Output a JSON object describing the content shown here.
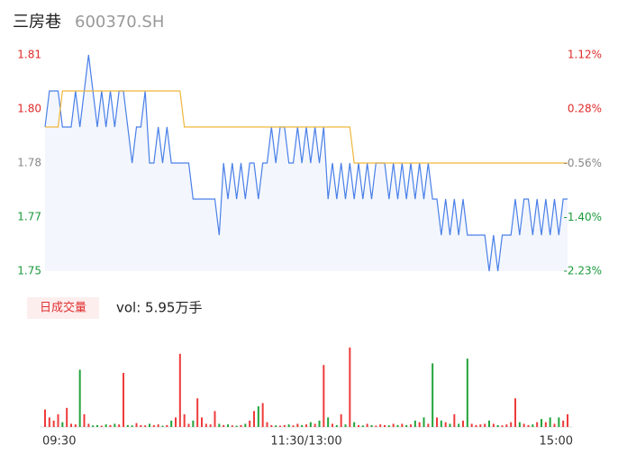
{
  "chart_data": [
    {
      "type": "line",
      "title": "三房巷",
      "subtitle": "600370.SH",
      "ylim": [
        1.75,
        1.81
      ],
      "yticks": [
        1.81,
        {
          "value": 1.795,
          "label": "1.80"
        },
        1.78,
        {
          "value": 1.765,
          "label": "1.77"
        },
        1.75
      ],
      "ytick_colors": [
        "#e02a2a",
        "#e02a2a",
        "#888888",
        "#1a9a3a",
        "#1a9a3a"
      ],
      "y2lim": [
        -2.23,
        1.12
      ],
      "y2ticks": [
        {
          "value": 1.12,
          "label": "1.12%"
        },
        {
          "value": 0.28,
          "label": "0.28%"
        },
        {
          "value": -0.56,
          "label": "-0.56%"
        },
        {
          "value": -1.4,
          "label": "-1.40%"
        },
        {
          "value": -2.23,
          "label": "-2.23%"
        }
      ],
      "xlim": [
        0,
        120
      ],
      "xticks": [
        {
          "value": 0,
          "label": "09:30"
        },
        {
          "value": 60,
          "label": "11:30/13:00"
        },
        {
          "value": 120,
          "label": "15:00"
        }
      ],
      "area_color": "#f3f6fd",
      "series": [
        {
          "color": "#4a80e8",
          "values": [
            1.79,
            1.8,
            1.8,
            1.8,
            1.79,
            1.79,
            1.79,
            1.8,
            1.79,
            1.8,
            1.81,
            1.8,
            1.79,
            1.8,
            1.79,
            1.8,
            1.79,
            1.8,
            1.8,
            1.79,
            1.78,
            1.79,
            1.79,
            1.8,
            1.78,
            1.78,
            1.79,
            1.78,
            1.79,
            1.78,
            1.78,
            1.78,
            1.78,
            1.78,
            1.77,
            1.77,
            1.77,
            1.77,
            1.77,
            1.77,
            1.76,
            1.78,
            1.77,
            1.78,
            1.77,
            1.78,
            1.77,
            1.78,
            1.78,
            1.77,
            1.78,
            1.78,
            1.79,
            1.78,
            1.79,
            1.79,
            1.78,
            1.78,
            1.79,
            1.78,
            1.79,
            1.78,
            1.79,
            1.78,
            1.79,
            1.77,
            1.78,
            1.77,
            1.78,
            1.77,
            1.78,
            1.77,
            1.78,
            1.77,
            1.78,
            1.77,
            1.78,
            1.78,
            1.78,
            1.77,
            1.78,
            1.77,
            1.78,
            1.77,
            1.78,
            1.77,
            1.78,
            1.77,
            1.78,
            1.77,
            1.77,
            1.76,
            1.77,
            1.76,
            1.77,
            1.76,
            1.77,
            1.76,
            1.76,
            1.76,
            1.76,
            1.76,
            1.75,
            1.76,
            1.75,
            1.76,
            1.76,
            1.76,
            1.77,
            1.76,
            1.77,
            1.77,
            1.76,
            1.77,
            1.76,
            1.77,
            1.76,
            1.77,
            1.76,
            1.77,
            1.77
          ]
        },
        {
          "color": "#f0b63c",
          "values": [
            1.79,
            1.79,
            1.79,
            1.79,
            1.8,
            1.8,
            1.8,
            1.8,
            1.8,
            1.8,
            1.8,
            1.8,
            1.8,
            1.8,
            1.8,
            1.8,
            1.8,
            1.8,
            1.8,
            1.8,
            1.8,
            1.8,
            1.8,
            1.8,
            1.8,
            1.8,
            1.8,
            1.8,
            1.8,
            1.8,
            1.8,
            1.8,
            1.79,
            1.79,
            1.79,
            1.79,
            1.79,
            1.79,
            1.79,
            1.79,
            1.79,
            1.79,
            1.79,
            1.79,
            1.79,
            1.79,
            1.79,
            1.79,
            1.79,
            1.79,
            1.79,
            1.79,
            1.79,
            1.79,
            1.79,
            1.79,
            1.79,
            1.79,
            1.79,
            1.79,
            1.79,
            1.79,
            1.79,
            1.79,
            1.79,
            1.79,
            1.79,
            1.79,
            1.79,
            1.79,
            1.79,
            1.78,
            1.78,
            1.78,
            1.78,
            1.78,
            1.78,
            1.78,
            1.78,
            1.78,
            1.78,
            1.78,
            1.78,
            1.78,
            1.78,
            1.78,
            1.78,
            1.78,
            1.78,
            1.78,
            1.78,
            1.78,
            1.78,
            1.78,
            1.78,
            1.78,
            1.78,
            1.78,
            1.78,
            1.78,
            1.78,
            1.78,
            1.78,
            1.78,
            1.78,
            1.78,
            1.78,
            1.78,
            1.78,
            1.78,
            1.78,
            1.78,
            1.78,
            1.78,
            1.78,
            1.78,
            1.78,
            1.78,
            1.78,
            1.78,
            1.78
          ]
        }
      ]
    },
    {
      "type": "bar",
      "title": "日成交量",
      "annotation": "vol: 5.95万手",
      "ylim": [
        0,
        2550
      ],
      "up_color": "#ee3b3b",
      "down_color": "#22a33a",
      "values": [
        550,
        300,
        200,
        400,
        150,
        600,
        100,
        80,
        1800,
        400,
        100,
        50,
        60,
        40,
        80,
        60,
        100,
        80,
        1700,
        60,
        50,
        120,
        60,
        50,
        100,
        60,
        80,
        40,
        60,
        200,
        300,
        2300,
        400,
        100,
        200,
        900,
        300,
        100,
        80,
        500,
        100,
        60,
        80,
        50,
        40,
        60,
        100,
        200,
        500,
        650,
        750,
        150,
        60,
        50,
        40,
        60,
        80,
        50,
        100,
        60,
        80,
        150,
        100,
        200,
        1950,
        300,
        100,
        60,
        400,
        80,
        2500,
        150,
        60,
        50,
        100,
        60,
        40,
        80,
        60,
        50,
        100,
        60,
        100,
        60,
        80,
        200,
        150,
        300,
        100,
        2000,
        300,
        200,
        150,
        100,
        400,
        100,
        200,
        2150,
        100,
        60,
        80,
        100,
        200,
        100,
        60,
        50,
        80,
        150,
        900,
        150,
        100,
        60,
        80,
        150,
        250,
        150,
        300,
        100,
        300,
        200,
        400
      ]
    }
  ]
}
